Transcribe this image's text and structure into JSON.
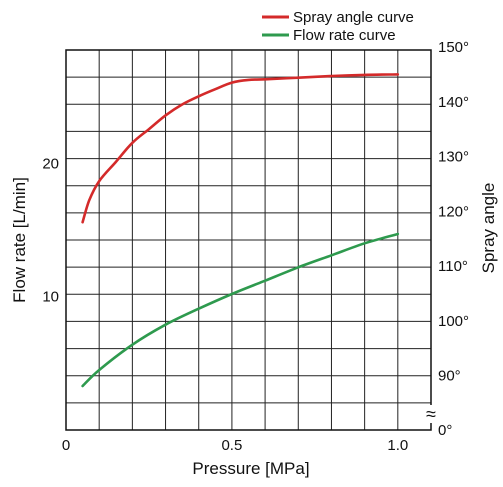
{
  "chart_data": {
    "type": "line",
    "xlabel": "Pressure [MPa]",
    "ylabel_left": "Flow rate [L/min]",
    "ylabel_right": "Spray angle",
    "x_ticks": [
      "0",
      "0.5",
      "1.0"
    ],
    "x_tick_values": [
      0,
      0.5,
      1.0
    ],
    "left_ticks": [
      "10",
      "20"
    ],
    "left_tick_values": [
      10,
      20
    ],
    "right_ticks": [
      "0°",
      "90°",
      "100°",
      "110°",
      "120°",
      "130°",
      "140°",
      "150°"
    ],
    "right_tick_values": [
      0,
      90,
      100,
      110,
      120,
      130,
      140,
      150
    ],
    "axis_break_symbol": "≈",
    "xlim": [
      0,
      1.1
    ],
    "ylim_left": [
      0,
      28.5
    ],
    "ylim_right_broken": [
      80,
      150
    ],
    "grid": true,
    "legend_position": "top-right",
    "series": [
      {
        "name": "Spray angle curve",
        "axis": "right",
        "color": "#d42a2a",
        "x": [
          0.05,
          0.07,
          0.1,
          0.15,
          0.2,
          0.25,
          0.3,
          0.35,
          0.4,
          0.45,
          0.5,
          0.55,
          0.6,
          0.7,
          0.8,
          0.9,
          1.0
        ],
        "y": [
          118,
          122,
          125.5,
          129,
          132.5,
          135,
          137.5,
          139.5,
          141,
          142.3,
          143.5,
          144,
          144.1,
          144.4,
          144.7,
          144.9,
          145
        ]
      },
      {
        "name": "Flow rate curve",
        "axis": "left",
        "color": "#2e9a4e",
        "x": [
          0.05,
          0.1,
          0.2,
          0.3,
          0.4,
          0.5,
          0.6,
          0.7,
          0.8,
          0.9,
          1.0
        ],
        "y": [
          3.3,
          4.5,
          6.4,
          7.9,
          9.1,
          10.2,
          11.2,
          12.2,
          13.1,
          14,
          14.7
        ]
      }
    ]
  }
}
